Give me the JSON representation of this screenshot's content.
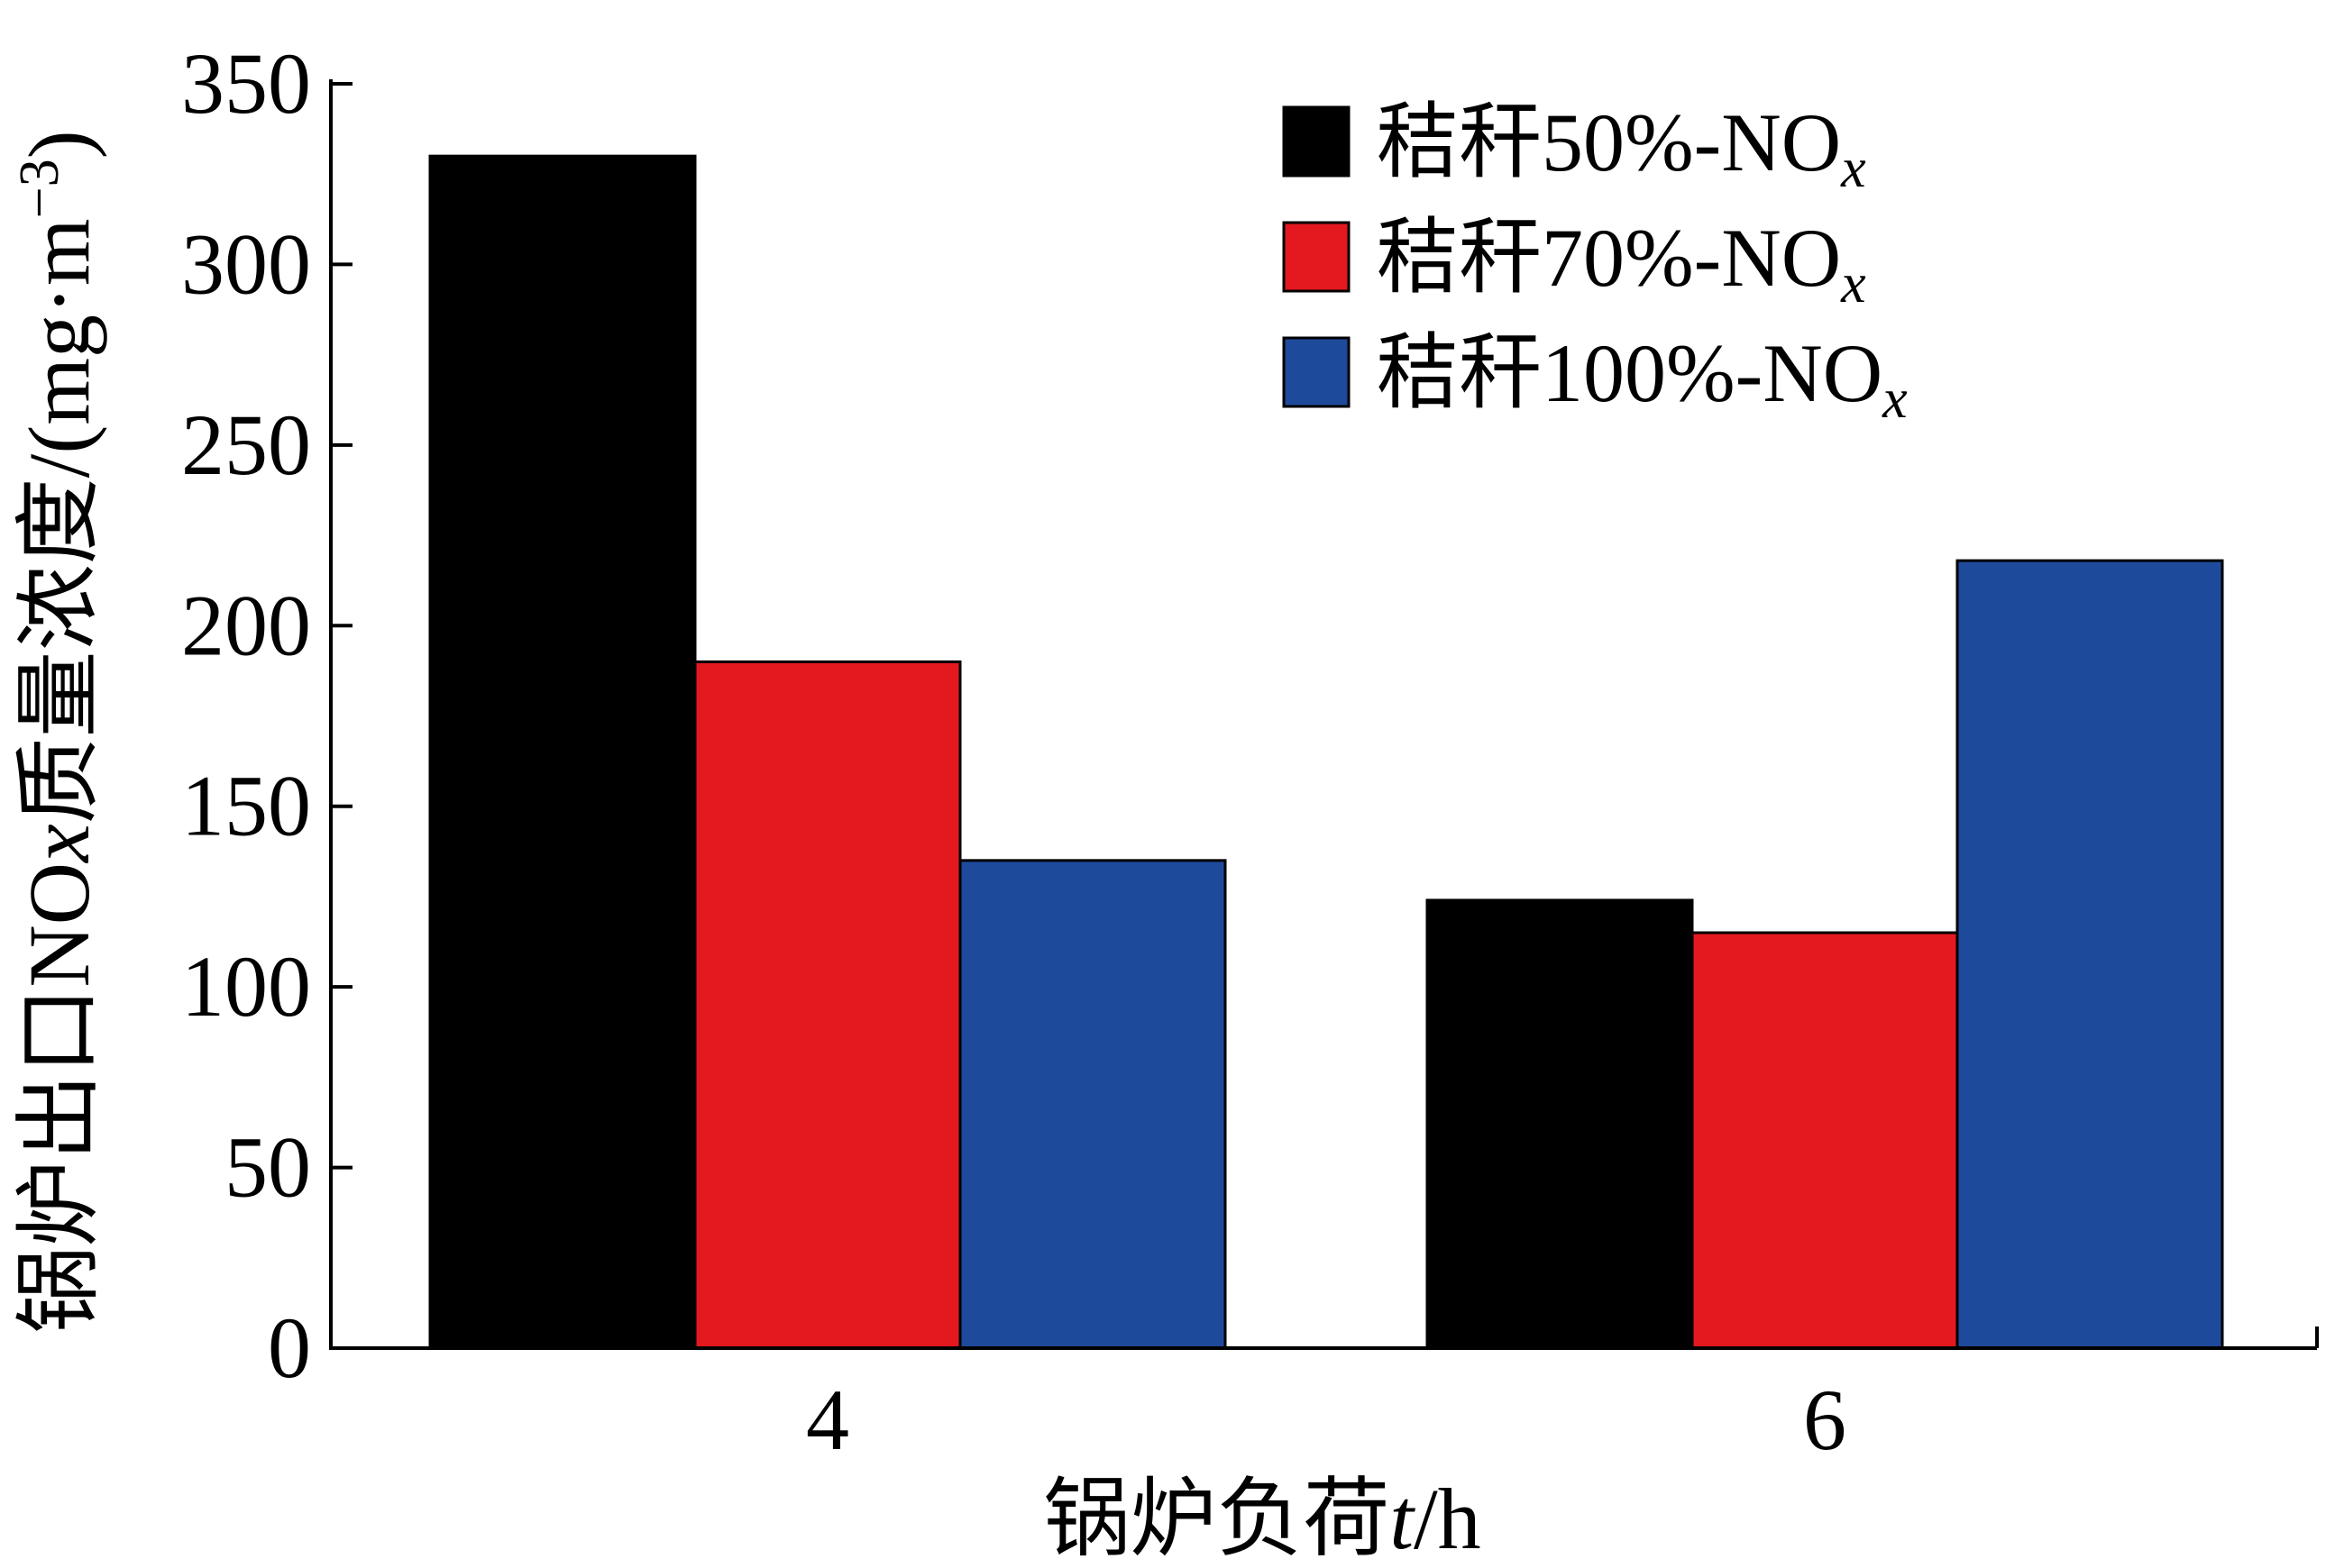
{
  "chart_data": {
    "type": "bar",
    "title": "",
    "xlabel_parts": [
      "锅炉负荷",
      "t",
      "/h"
    ],
    "xlabel": "锅炉负荷t/h",
    "ylabel_main": "锅炉出口NO",
    "ylabel_x": "x",
    "ylabel_rest": "质量浓度/(mg·m",
    "ylabel_exp": "−3",
    "ylabel": "锅炉出口NOx质量浓度/(mg·m−3)",
    "categories": [
      "4",
      "6"
    ],
    "ylim": [
      0,
      350
    ],
    "yticks": [
      "0",
      "50",
      "100",
      "150",
      "200",
      "250",
      "300",
      "350"
    ],
    "legend_position": "top-right",
    "series": [
      {
        "name_main": "秸秆50%-NO",
        "name_sub": "x",
        "name": "秸秆50%-NOx",
        "color": "#000000",
        "values": [
          330,
          124
        ]
      },
      {
        "name_main": "秸秆70%-NO",
        "name_sub": "x",
        "name": "秸秆70%-NOx",
        "color": "#e3191f",
        "values": [
          190,
          115
        ]
      },
      {
        "name_main": "秸秆100%-NO",
        "name_sub": "x",
        "name": "秸秆100%-NOx",
        "color": "#1e4a9c",
        "values": [
          135,
          218
        ]
      }
    ]
  }
}
